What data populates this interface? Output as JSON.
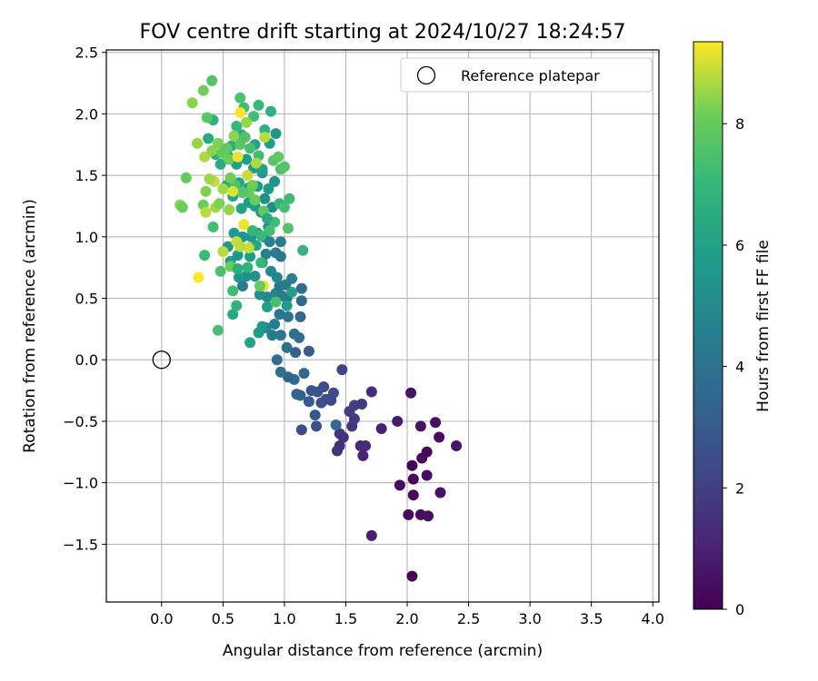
{
  "chart_data": {
    "type": "scatter",
    "title": "FOV centre drift starting at 2024/10/27 18:24:57",
    "xlabel": "Angular distance from reference (arcmin)",
    "ylabel": "Rotation from reference (arcmin)",
    "xlim": [
      -0.45,
      4.05
    ],
    "ylim": [
      -1.97,
      2.52
    ],
    "xticks": [
      "0.0",
      "0.5",
      "1.0",
      "1.5",
      "2.0",
      "2.5",
      "3.0",
      "3.5",
      "4.0"
    ],
    "yticks": [
      "−1.5",
      "−1.0",
      "−0.5",
      "0.0",
      "0.5",
      "1.0",
      "1.5",
      "2.0",
      "2.5"
    ],
    "grid": true,
    "legend": {
      "position": "upper right",
      "entries": [
        "Reference platepar"
      ]
    },
    "reference_point": {
      "x": 0.0,
      "y": 0.0
    },
    "colorbar": {
      "label": "Hours from first FF file",
      "colormap": "viridis",
      "range": [
        0,
        9.35
      ],
      "ticks": [
        "0",
        "2",
        "4",
        "6",
        "8"
      ]
    },
    "columns": [
      "x",
      "y",
      "hours"
    ],
    "points": [
      [
        2.04,
        -1.76,
        0.1
      ],
      [
        1.71,
        -1.43,
        0.9
      ],
      [
        2.01,
        -1.26,
        0.2
      ],
      [
        2.11,
        -1.26,
        0.3
      ],
      [
        2.17,
        -1.27,
        0.4
      ],
      [
        2.05,
        -1.1,
        0.2
      ],
      [
        1.94,
        -1.02,
        0.3
      ],
      [
        2.05,
        -0.97,
        0.2
      ],
      [
        2.27,
        -1.08,
        0.5
      ],
      [
        2.16,
        -0.94,
        0.4
      ],
      [
        2.04,
        -0.86,
        0.1
      ],
      [
        2.12,
        -0.8,
        0.3
      ],
      [
        2.16,
        -0.75,
        0.2
      ],
      [
        2.4,
        -0.7,
        0.6
      ],
      [
        2.26,
        -0.63,
        0.4
      ],
      [
        2.23,
        -0.51,
        0.5
      ],
      [
        2.11,
        -0.54,
        0.5
      ],
      [
        1.92,
        -0.5,
        0.8
      ],
      [
        2.03,
        -0.27,
        0.6
      ],
      [
        1.71,
        -0.26,
        1.3
      ],
      [
        1.79,
        -0.56,
        1.0
      ],
      [
        1.62,
        -0.7,
        1.2
      ],
      [
        1.66,
        -0.7,
        1.3
      ],
      [
        1.64,
        -0.78,
        1.1
      ],
      [
        1.45,
        -0.7,
        1.4
      ],
      [
        1.43,
        -0.74,
        1.5
      ],
      [
        1.48,
        -0.63,
        1.5
      ],
      [
        1.45,
        -0.6,
        1.6
      ],
      [
        1.55,
        -0.54,
        1.7
      ],
      [
        1.57,
        -0.48,
        1.8
      ],
      [
        1.53,
        -0.42,
        1.9
      ],
      [
        1.57,
        -0.37,
        2.0
      ],
      [
        1.63,
        -0.36,
        1.8
      ],
      [
        1.47,
        -0.08,
        2.2
      ],
      [
        1.4,
        -0.27,
        2.4
      ],
      [
        1.38,
        -0.33,
        2.3
      ],
      [
        1.34,
        -0.32,
        2.5
      ],
      [
        1.3,
        -0.35,
        2.6
      ],
      [
        1.32,
        -0.22,
        2.4
      ],
      [
        1.27,
        -0.26,
        2.7
      ],
      [
        1.22,
        -0.25,
        2.8
      ],
      [
        1.2,
        -0.34,
        3.0
      ],
      [
        1.25,
        -0.45,
        2.9
      ],
      [
        1.26,
        -0.54,
        2.6
      ],
      [
        1.14,
        -0.57,
        2.5
      ],
      [
        1.42,
        -0.53,
        3.5
      ],
      [
        1.1,
        -0.28,
        3.3
      ],
      [
        1.13,
        -0.29,
        3.4
      ],
      [
        1.08,
        -0.16,
        3.6
      ],
      [
        1.03,
        -0.14,
        3.4
      ],
      [
        0.97,
        -0.1,
        3.8
      ],
      [
        0.94,
        -0.0,
        3.7
      ],
      [
        1.02,
        0.1,
        3.9
      ],
      [
        1.16,
        -0.11,
        3.5
      ],
      [
        1.09,
        0.06,
        3.3
      ],
      [
        1.2,
        0.07,
        3.0
      ],
      [
        1.12,
        0.18,
        3.7
      ],
      [
        1.08,
        0.21,
        3.8
      ],
      [
        0.97,
        0.2,
        4.1
      ],
      [
        0.9,
        0.2,
        4.3
      ],
      [
        0.85,
        0.26,
        4.8
      ],
      [
        0.92,
        0.29,
        4.5
      ],
      [
        0.96,
        0.37,
        4.0
      ],
      [
        1.03,
        0.35,
        3.9
      ],
      [
        1.13,
        0.35,
        3.5
      ],
      [
        1.14,
        0.48,
        3.6
      ],
      [
        1.14,
        0.58,
        3.7
      ],
      [
        1.02,
        0.5,
        4.2
      ],
      [
        0.98,
        0.52,
        4.4
      ],
      [
        0.93,
        0.54,
        4.6
      ],
      [
        0.86,
        0.51,
        4.9
      ],
      [
        0.8,
        0.53,
        5.1
      ],
      [
        0.96,
        0.6,
        4.1
      ],
      [
        1.01,
        0.61,
        4.3
      ],
      [
        1.06,
        0.66,
        4.5
      ],
      [
        0.94,
        0.67,
        4.8
      ],
      [
        0.89,
        0.72,
        4.9
      ],
      [
        0.82,
        0.79,
        5.0
      ],
      [
        0.76,
        0.68,
        5.3
      ],
      [
        0.69,
        0.68,
        5.2
      ],
      [
        0.63,
        0.67,
        5.6
      ],
      [
        0.66,
        0.6,
        4.4
      ],
      [
        0.85,
        0.86,
        4.5
      ],
      [
        0.93,
        0.87,
        4.3
      ],
      [
        0.97,
        0.84,
        4.2
      ],
      [
        0.97,
        0.96,
        4.4
      ],
      [
        0.88,
        0.96,
        4.6
      ],
      [
        0.83,
        1.0,
        4.9
      ],
      [
        0.78,
        1.03,
        5.2
      ],
      [
        0.73,
        1.0,
        5.4
      ],
      [
        0.66,
        1.0,
        5.5
      ],
      [
        0.59,
        1.03,
        5.7
      ],
      [
        0.54,
        0.92,
        5.6
      ],
      [
        0.56,
        0.8,
        5.8
      ],
      [
        0.62,
        0.85,
        5.5
      ],
      [
        0.72,
        0.84,
        5.9
      ],
      [
        0.77,
        0.93,
        6.1
      ],
      [
        0.87,
        1.08,
        5.2
      ],
      [
        0.81,
        1.2,
        5.4
      ],
      [
        0.76,
        1.25,
        5.6
      ],
      [
        0.9,
        1.24,
        5.0
      ],
      [
        0.84,
        1.31,
        5.2
      ],
      [
        0.71,
        1.28,
        5.8
      ],
      [
        0.65,
        1.23,
        6.0
      ],
      [
        0.58,
        1.33,
        6.2
      ],
      [
        0.53,
        1.42,
        6.3
      ],
      [
        0.63,
        1.44,
        6.1
      ],
      [
        0.71,
        1.4,
        5.9
      ],
      [
        0.78,
        1.41,
        5.8
      ],
      [
        0.87,
        1.39,
        5.6
      ],
      [
        0.92,
        1.45,
        5.4
      ],
      [
        0.82,
        1.52,
        5.5
      ],
      [
        0.75,
        1.56,
        5.7
      ],
      [
        0.69,
        1.63,
        5.8
      ],
      [
        0.61,
        1.59,
        6.0
      ],
      [
        0.54,
        1.66,
        6.3
      ],
      [
        0.48,
        1.59,
        6.5
      ],
      [
        0.44,
        1.67,
        6.6
      ],
      [
        0.38,
        1.8,
        6.4
      ],
      [
        0.42,
        1.95,
        6.8
      ],
      [
        0.57,
        1.74,
        6.6
      ],
      [
        0.65,
        1.83,
        6.3
      ],
      [
        0.76,
        1.75,
        6.1
      ],
      [
        0.82,
        1.55,
        6.0
      ],
      [
        0.88,
        1.76,
        5.9
      ],
      [
        0.93,
        1.84,
        5.5
      ],
      [
        0.89,
        2.02,
        6.7
      ],
      [
        0.84,
        1.87,
        6.8
      ],
      [
        0.79,
        2.07,
        7.0
      ],
      [
        0.64,
        2.13,
        7.5
      ],
      [
        0.67,
        2.05,
        7.2
      ],
      [
        0.61,
        1.9,
        7.0
      ],
      [
        0.75,
        1.98,
        7.3
      ],
      [
        0.41,
        2.27,
        7.6
      ],
      [
        0.34,
        2.19,
        8.2
      ],
      [
        0.37,
        1.97,
        7.8
      ],
      [
        0.25,
        2.09,
        8.4
      ],
      [
        0.29,
        1.76,
        8.5
      ],
      [
        0.35,
        1.65,
        8.7
      ],
      [
        0.41,
        1.7,
        8.4
      ],
      [
        0.49,
        1.68,
        8.0
      ],
      [
        0.46,
        1.76,
        8.3
      ],
      [
        0.53,
        1.72,
        7.9
      ],
      [
        0.55,
        1.63,
        8.1
      ],
      [
        0.59,
        1.82,
        8.4
      ],
      [
        0.64,
        1.75,
        7.8
      ],
      [
        0.68,
        1.81,
        7.6
      ],
      [
        0.72,
        1.72,
        7.4
      ],
      [
        0.79,
        1.66,
        7.2
      ],
      [
        0.84,
        1.81,
        8.8
      ],
      [
        0.91,
        1.62,
        7.7
      ],
      [
        0.97,
        1.55,
        7.5
      ],
      [
        1.0,
        1.57,
        7.6
      ],
      [
        0.95,
        1.65,
        7.9
      ],
      [
        0.64,
        2.01,
        9.3
      ],
      [
        0.69,
        1.93,
        8.5
      ],
      [
        0.62,
        1.65,
        9.2
      ],
      [
        0.7,
        1.5,
        8.9
      ],
      [
        0.77,
        1.6,
        8.7
      ],
      [
        0.74,
        1.42,
        8.2
      ],
      [
        0.71,
        1.36,
        8.0
      ],
      [
        0.66,
        1.36,
        7.7
      ],
      [
        0.6,
        1.42,
        7.5
      ],
      [
        0.56,
        1.48,
        8.2
      ],
      [
        0.5,
        1.39,
        8.6
      ],
      [
        0.43,
        1.45,
        8.9
      ],
      [
        0.39,
        1.47,
        8.6
      ],
      [
        0.36,
        1.37,
        8.3
      ],
      [
        0.34,
        1.26,
        8.1
      ],
      [
        0.2,
        1.48,
        8.0
      ],
      [
        0.15,
        1.26,
        8.4
      ],
      [
        0.17,
        1.24,
        8.1
      ],
      [
        0.36,
        1.2,
        8.8
      ],
      [
        0.44,
        1.24,
        8.6
      ],
      [
        0.47,
        1.27,
        8.3
      ],
      [
        0.55,
        1.22,
        8.5
      ],
      [
        0.58,
        1.37,
        9.1
      ],
      [
        0.76,
        1.3,
        8.1
      ],
      [
        0.83,
        1.21,
        7.9
      ],
      [
        0.92,
        1.12,
        7.3
      ],
      [
        0.96,
        1.27,
        6.9
      ],
      [
        1.04,
        1.31,
        7.2
      ],
      [
        1.0,
        1.24,
        7.4
      ],
      [
        1.03,
        1.07,
        7.6
      ],
      [
        0.88,
        1.05,
        7.3
      ],
      [
        0.81,
        1.01,
        7.1
      ],
      [
        0.74,
        1.05,
        6.9
      ],
      [
        0.67,
        1.1,
        9.2
      ],
      [
        0.61,
        0.96,
        8.9
      ],
      [
        0.5,
        0.88,
        8.8
      ],
      [
        0.56,
        0.76,
        8.1
      ],
      [
        0.48,
        0.72,
        7.5
      ],
      [
        0.42,
        1.08,
        7.3
      ],
      [
        0.35,
        0.85,
        7.1
      ],
      [
        0.3,
        0.67,
        9.4
      ],
      [
        0.46,
        0.24,
        7.4
      ],
      [
        0.58,
        0.56,
        7.2
      ],
      [
        0.58,
        0.37,
        6.4
      ],
      [
        0.61,
        0.44,
        6.8
      ],
      [
        0.72,
        0.14,
        6.1
      ],
      [
        0.79,
        0.22,
        5.8
      ],
      [
        0.82,
        0.27,
        5.5
      ],
      [
        0.86,
        0.43,
        5.9
      ],
      [
        0.93,
        0.47,
        7.4
      ],
      [
        0.83,
        0.6,
        9.2
      ],
      [
        0.8,
        0.6,
        8.0
      ],
      [
        0.81,
        0.79,
        7.0
      ],
      [
        0.7,
        0.75,
        6.8
      ],
      [
        0.62,
        0.74,
        6.6
      ],
      [
        1.06,
        0.55,
        6.0
      ],
      [
        1.02,
        0.44,
        5.7
      ],
      [
        1.15,
        0.89,
        6.9
      ],
      [
        0.71,
        0.91,
        8.9
      ],
      [
        0.64,
        0.92,
        8.8
      ],
      [
        0.86,
        1.15,
        6.3
      ]
    ]
  }
}
